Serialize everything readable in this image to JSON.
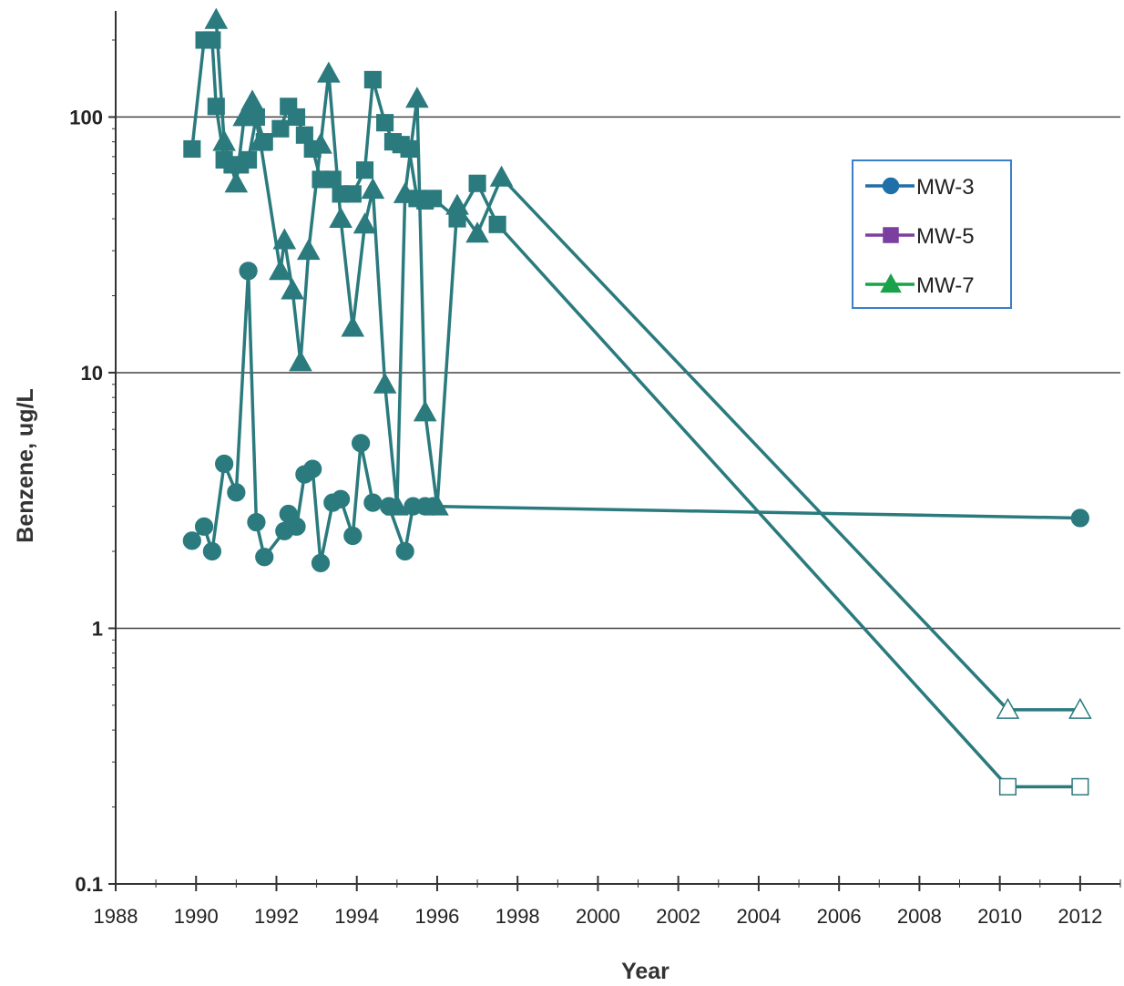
{
  "chart_data": {
    "type": "line",
    "title": "",
    "xlabel": "Year",
    "ylabel": "Benzene, ug/L",
    "y_scale": "log",
    "xlim": [
      1988,
      2013
    ],
    "ylim": [
      0.1,
      260
    ],
    "x_ticks": [
      "1988",
      "1990",
      "1992",
      "1994",
      "1996",
      "1998",
      "2000",
      "2002",
      "2004",
      "2006",
      "2008",
      "2010",
      "2012"
    ],
    "y_ticks": [
      "0.1",
      "1",
      "10",
      "100"
    ],
    "grid": "horizontal major lines",
    "legend_position": "top-right",
    "colors": {
      "line": "#2a7a7e",
      "mw3": "#1f6fa8",
      "mw5": "#7b3fa0",
      "mw7": "#1aa24a",
      "legend_border": "#3a7fc8"
    },
    "series": [
      {
        "name": "MW-3",
        "marker": "circle",
        "points": [
          [
            1989.9,
            2.2
          ],
          [
            1990.2,
            2.5
          ],
          [
            1990.4,
            2.0
          ],
          [
            1990.7,
            4.4
          ],
          [
            1991.0,
            3.4
          ],
          [
            1991.3,
            25
          ],
          [
            1991.5,
            2.6
          ],
          [
            1991.7,
            1.9
          ],
          [
            1992.2,
            2.4
          ],
          [
            1992.3,
            2.8
          ],
          [
            1992.5,
            2.5
          ],
          [
            1992.7,
            4.0
          ],
          [
            1992.9,
            4.2
          ],
          [
            1993.1,
            1.8
          ],
          [
            1993.4,
            3.1
          ],
          [
            1993.6,
            3.2
          ],
          [
            1993.9,
            2.3
          ],
          [
            1994.1,
            5.3
          ],
          [
            1994.4,
            3.1
          ],
          [
            1994.8,
            3.0
          ],
          [
            1995.2,
            2.0
          ],
          [
            1995.4,
            3.0
          ],
          [
            1995.7,
            3.0
          ],
          [
            1995.9,
            3.0
          ],
          [
            2012.0,
            2.7
          ]
        ]
      },
      {
        "name": "MW-5",
        "marker": "square",
        "points": [
          [
            1989.9,
            75
          ],
          [
            1990.2,
            200
          ],
          [
            1990.4,
            200
          ],
          [
            1990.5,
            110
          ],
          [
            1990.7,
            68
          ],
          [
            1990.9,
            65
          ],
          [
            1991.1,
            65
          ],
          [
            1991.3,
            68
          ],
          [
            1991.5,
            100
          ],
          [
            1991.7,
            80
          ],
          [
            1992.1,
            90
          ],
          [
            1992.3,
            110
          ],
          [
            1992.5,
            100
          ],
          [
            1992.7,
            85
          ],
          [
            1992.9,
            75
          ],
          [
            1993.1,
            57
          ],
          [
            1993.4,
            57
          ],
          [
            1993.6,
            50
          ],
          [
            1993.9,
            50
          ],
          [
            1994.2,
            62
          ],
          [
            1994.4,
            140
          ],
          [
            1994.7,
            95
          ],
          [
            1994.9,
            80
          ],
          [
            1995.1,
            78
          ],
          [
            1995.3,
            75
          ],
          [
            1995.5,
            48
          ],
          [
            1995.7,
            47
          ],
          [
            1995.9,
            48
          ],
          [
            1996.5,
            40
          ],
          [
            1997.0,
            55
          ],
          [
            1997.5,
            38
          ],
          [
            2010.2,
            0.24
          ],
          [
            2012.0,
            0.24
          ]
        ]
      },
      {
        "name": "MW-7",
        "marker": "triangle",
        "points": [
          [
            1990.5,
            240
          ],
          [
            1990.7,
            80
          ],
          [
            1991.0,
            55
          ],
          [
            1991.2,
            100
          ],
          [
            1991.4,
            115
          ],
          [
            1991.6,
            80
          ],
          [
            1992.1,
            25
          ],
          [
            1992.2,
            33
          ],
          [
            1992.4,
            21
          ],
          [
            1992.6,
            11
          ],
          [
            1992.8,
            30
          ],
          [
            1993.1,
            78
          ],
          [
            1993.3,
            148
          ],
          [
            1993.6,
            40
          ],
          [
            1993.9,
            15
          ],
          [
            1994.2,
            38
          ],
          [
            1994.4,
            52
          ],
          [
            1994.7,
            9
          ],
          [
            1995.0,
            3.0
          ],
          [
            1995.2,
            50
          ],
          [
            1995.5,
            118
          ],
          [
            1995.7,
            7
          ],
          [
            1996.0,
            3.0
          ],
          [
            1996.5,
            45
          ],
          [
            1997.0,
            35
          ],
          [
            1997.6,
            58
          ],
          [
            2010.2,
            0.48
          ],
          [
            2012.0,
            0.48
          ]
        ]
      }
    ]
  }
}
